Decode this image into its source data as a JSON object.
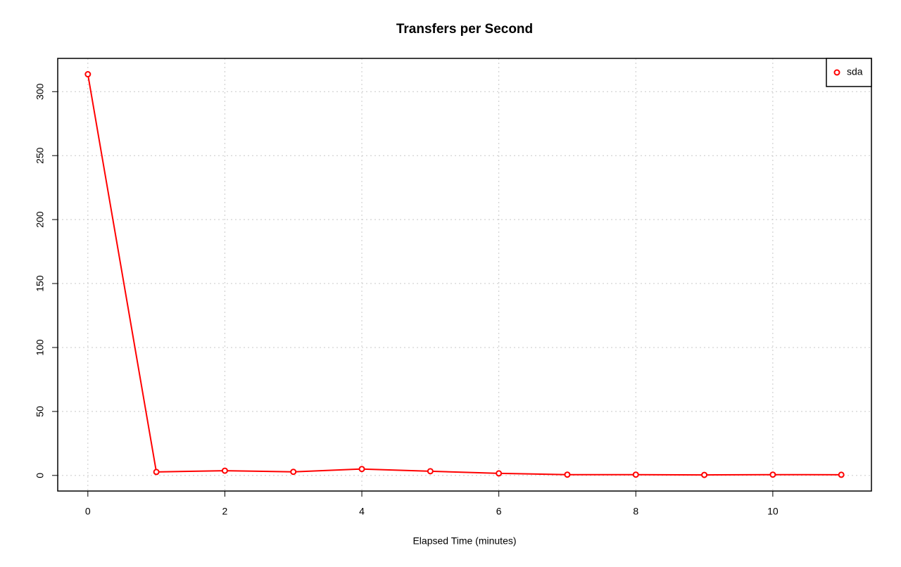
{
  "chart_data": {
    "type": "line",
    "title": "Transfers per Second",
    "xlabel": "Elapsed Time (minutes)",
    "x": [
      0,
      1,
      2,
      3,
      4,
      5,
      6,
      7,
      8,
      9,
      10,
      11
    ],
    "series": [
      {
        "name": "sda",
        "color": "#ff0000",
        "values": [
          313.6,
          2.7,
          3.7,
          2.8,
          5.0,
          3.3,
          1.6,
          0.6,
          0.6,
          0.4,
          0.6,
          0.5
        ]
      }
    ],
    "xlim": [
      -0.44,
      11.44
    ],
    "ylim": [
      -12.2,
      326.0
    ],
    "xticks": [
      0,
      2,
      4,
      6,
      8,
      10
    ],
    "yticks": [
      0,
      50,
      100,
      150,
      200,
      250,
      300
    ],
    "grid": true,
    "legend": "topright"
  }
}
